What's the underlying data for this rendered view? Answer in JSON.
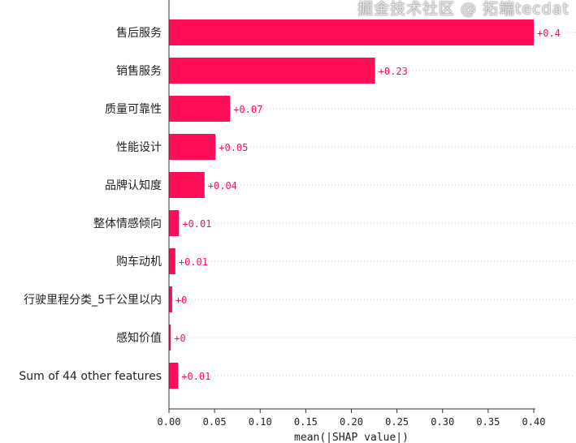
{
  "chart_data": {
    "type": "bar",
    "orientation": "horizontal",
    "categories": [
      "售后服务",
      "销售服务",
      "质量可靠性",
      "性能设计",
      "品牌认知度",
      "整体情感倾向",
      "购车动机",
      "行驶里程分类_5千公里以内",
      "感知价值",
      "Sum of 44 other features"
    ],
    "values": [
      0.4,
      0.226,
      0.067,
      0.051,
      0.039,
      0.011,
      0.007,
      0.0035,
      0.002,
      0.01
    ],
    "value_labels": [
      "+0.4",
      "+0.23",
      "+0.07",
      "+0.05",
      "+0.04",
      "+0.01",
      "+0.01",
      "+0",
      "+0",
      "+0.01"
    ],
    "xlabel": "mean(|SHAP value|)",
    "ylabel": "",
    "xlim": [
      0,
      0.4
    ],
    "xticks": [
      "0.00",
      "0.05",
      "0.10",
      "0.15",
      "0.20",
      "0.25",
      "0.30",
      "0.35",
      "0.40"
    ],
    "grid": "dotted horizontal row lines",
    "bar_color": "#ff0d57"
  },
  "watermark": "掘金技术社区 @ 拓端tecdat"
}
